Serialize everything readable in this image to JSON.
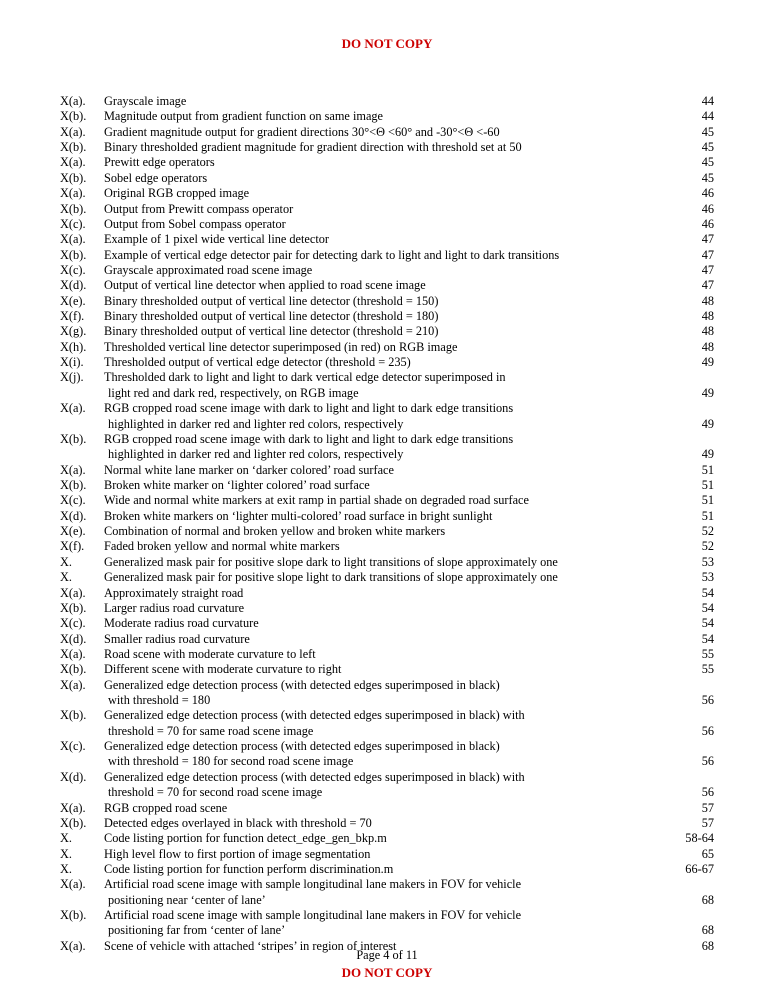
{
  "header_warning": "DO NOT COPY",
  "footer_page": "Page 4 of 11",
  "footer_warning": "DO NOT COPY",
  "toc": [
    {
      "label": "X(a).",
      "text": "Grayscale image",
      "page": "44"
    },
    {
      "label": "X(b).",
      "text": "Magnitude output from gradient function on same image",
      "page": "44"
    },
    {
      "label": "X(a).",
      "text": "Gradient magnitude output for gradient directions 30°<Θ <60°  and  -30°<Θ <-60",
      "page": "45"
    },
    {
      "label": "X(b).",
      "text": "Binary thresholded gradient magnitude for gradient direction with threshold set at 50",
      "page": "45"
    },
    {
      "label": "X(a).",
      "text": "Prewitt edge operators",
      "page": "45"
    },
    {
      "label": "X(b).",
      "text": "Sobel edge operators",
      "page": "45"
    },
    {
      "label": "X(a).",
      "text": "Original RGB cropped image",
      "page": "46"
    },
    {
      "label": "X(b).",
      "text": "Output from Prewitt compass operator",
      "page": "46"
    },
    {
      "label": "X(c).",
      "text": "Output from Sobel compass operator",
      "page": "46"
    },
    {
      "label": "X(a).",
      "text": "Example of 1 pixel wide vertical line detector",
      "page": "47"
    },
    {
      "label": "X(b).",
      "text": "Example of vertical edge detector pair for detecting dark to light and light to dark transitions",
      "page": "47"
    },
    {
      "label": "X(c).",
      "text": "Grayscale approximated road scene image",
      "page": "47"
    },
    {
      "label": "X(d).",
      "text": "Output of vertical line detector when applied to road scene image",
      "page": "47"
    },
    {
      "label": "X(e).",
      "text": "Binary thresholded output of vertical line detector (threshold = 150)",
      "page": "48"
    },
    {
      "label": "X(f).",
      "text": "Binary thresholded output of vertical line detector (threshold = 180)",
      "page": "48"
    },
    {
      "label": "X(g).",
      "text": "Binary thresholded output of vertical line detector (threshold = 210)",
      "page": "48"
    },
    {
      "label": "X(h).",
      "text": "Thresholded vertical line detector superimposed (in red) on RGB image",
      "page": "48"
    },
    {
      "label": "X(i).",
      "text": "Thresholded output of vertical edge detector (threshold = 235)",
      "page": "49"
    },
    {
      "label": "X(j).",
      "text": "Thresholded dark to light and light to dark vertical edge detector superimposed in",
      "cont": "light red and dark red, respectively, on RGB image",
      "page": "49"
    },
    {
      "label": "X(a).",
      "text": "RGB cropped road scene image with dark to light and light to dark edge transitions",
      "cont": "highlighted in darker red and lighter red colors, respectively",
      "page": "49"
    },
    {
      "label": "X(b).",
      "text": "RGB cropped road scene image with dark to light and light to dark edge transitions",
      "cont": "highlighted in darker red and lighter red colors, respectively",
      "page": "49"
    },
    {
      "label": "X(a).",
      "text": "Normal white lane marker on ‘darker colored’ road surface",
      "page": "51"
    },
    {
      "label": "X(b).",
      "text": "Broken white marker on ‘lighter colored’ road surface",
      "page": "51"
    },
    {
      "label": "X(c).",
      "text": "Wide and normal white markers at exit ramp in partial shade on degraded road surface",
      "page": "51"
    },
    {
      "label": "X(d).",
      "text": "Broken white markers on ‘lighter multi-colored’ road surface in bright sunlight",
      "page": "51"
    },
    {
      "label": "X(e).",
      "text": "Combination of normal and broken yellow and broken white markers",
      "page": "52"
    },
    {
      "label": "X(f).",
      "text": "Faded broken yellow and normal white markers",
      "page": "52"
    },
    {
      "label": "X.",
      "text": "Generalized mask pair for positive slope dark to light transitions of slope approximately one",
      "page": "53"
    },
    {
      "label": "X.",
      "text": "Generalized mask pair for positive slope light to dark transitions of slope approximately one",
      "page": "53"
    },
    {
      "label": "X(a).",
      "text": "Approximately straight road",
      "page": "54"
    },
    {
      "label": "X(b).",
      "text": "Larger radius road curvature",
      "page": "54"
    },
    {
      "label": "X(c).",
      "text": "Moderate radius road curvature",
      "page": "54"
    },
    {
      "label": "X(d).",
      "text": "Smaller radius road curvature",
      "page": "54"
    },
    {
      "label": "X(a).",
      "text": "Road scene with moderate curvature to left",
      "page": "55"
    },
    {
      "label": "X(b).",
      "text": "Different scene with moderate curvature to right",
      "page": "55"
    },
    {
      "label": "X(a).",
      "text": "Generalized edge detection process (with detected edges superimposed in black)",
      "cont": "with threshold = 180",
      "page": "56"
    },
    {
      "label": "X(b).",
      "text": "Generalized edge detection process (with detected edges superimposed in black) with",
      "cont": "threshold = 70 for same road scene image",
      "page": "56"
    },
    {
      "label": "X(c).",
      "text": "Generalized edge detection process (with detected edges superimposed in black)",
      "cont": "with threshold = 180 for second road scene image",
      "page": "56"
    },
    {
      "label": "X(d).",
      "text": "Generalized edge detection process (with detected edges superimposed in black) with",
      "cont": "threshold = 70 for second road scene image",
      "page": "56"
    },
    {
      "label": "X(a).",
      "text": "RGB cropped road scene",
      "page": "57"
    },
    {
      "label": "X(b).",
      "text": "Detected edges overlayed in black with threshold = 70",
      "page": "57"
    },
    {
      "label": "X.",
      "text": "Code listing portion for function detect_edge_gen_bkp.m",
      "page": "58-64"
    },
    {
      "label": "X.",
      "text": "High level flow to first portion of image segmentation",
      "page": "65"
    },
    {
      "label": "X.",
      "text": "Code listing portion for function perform  discrimination.m",
      "page": "66-67"
    },
    {
      "label": "X(a).",
      "text": "Artificial road scene image with sample longitudinal lane makers in FOV for vehicle",
      "cont": "positioning near ‘center of lane’",
      "page": "68"
    },
    {
      "label": "X(b).",
      "text": "Artificial road scene image with sample longitudinal lane makers in FOV for vehicle",
      "cont": "positioning far from ‘center of lane’",
      "page": "68"
    },
    {
      "label": "X(a).",
      "text": "Scene of vehicle with attached ‘stripes’ in region of interest",
      "page": "68"
    }
  ]
}
